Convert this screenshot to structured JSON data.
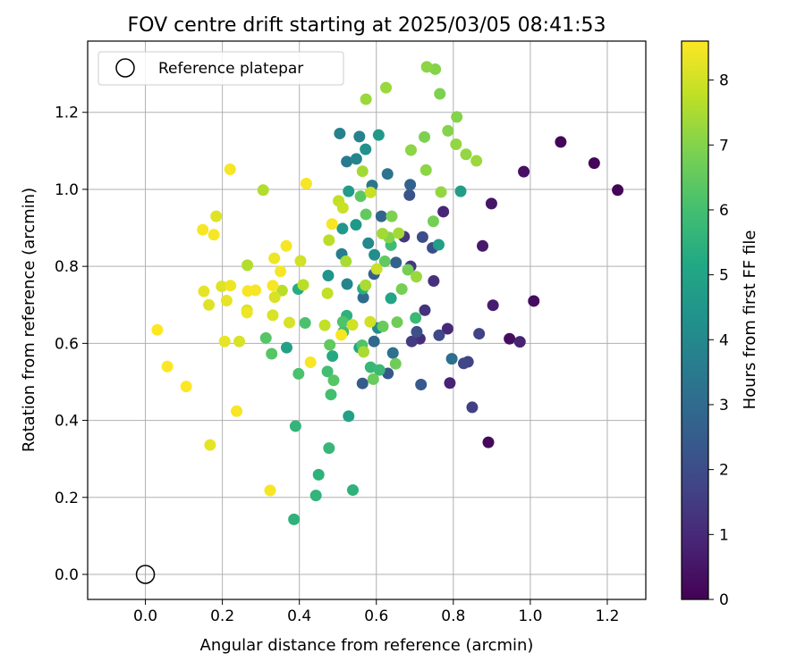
{
  "chart_data": {
    "type": "scatter",
    "title": "FOV centre drift starting at 2025/03/05 08:41:53",
    "xlabel": "Angular distance from reference (arcmin)",
    "ylabel": "Rotation from reference (arcmin)",
    "xlim": [
      -0.15,
      1.3
    ],
    "ylim": [
      -0.065,
      1.385
    ],
    "xticks": [
      "0.0",
      "0.2",
      "0.4",
      "0.6",
      "0.8",
      "1.0",
      "1.2"
    ],
    "xtick_values": [
      0,
      0.2,
      0.4,
      0.6,
      0.8,
      1.0,
      1.2
    ],
    "yticks": [
      "0.0",
      "0.2",
      "0.4",
      "0.6",
      "0.8",
      "1.0",
      "1.2"
    ],
    "ytick_values": [
      0,
      0.2,
      0.4,
      0.6,
      0.8,
      1.0,
      1.2
    ],
    "grid": true,
    "colormap": "viridis",
    "colorbar": {
      "label": "Hours from first FF file",
      "range": [
        0,
        8.6
      ],
      "ticks": [
        "0",
        "1",
        "2",
        "3",
        "4",
        "5",
        "6",
        "7",
        "8"
      ],
      "tick_values": [
        0,
        1,
        2,
        3,
        4,
        5,
        6,
        7,
        8
      ]
    },
    "legend": {
      "position": "top-left",
      "entries": [
        "Reference platepar"
      ]
    },
    "reference_point": {
      "name": "Reference platepar",
      "x": 0,
      "y": 0
    },
    "series": [
      {
        "points": [
          [
            1.227,
            0.998,
            0.1
          ],
          [
            1.166,
            1.068,
            0.1
          ],
          [
            1.079,
            1.123,
            0.1
          ],
          [
            0.891,
            0.343,
            0.2
          ],
          [
            1.009,
            0.71,
            0.3
          ],
          [
            0.946,
            0.612,
            0.3
          ],
          [
            0.983,
            1.046,
            0.4
          ],
          [
            0.899,
            0.963,
            0.5
          ],
          [
            0.876,
            0.853,
            0.6
          ],
          [
            0.903,
            0.699,
            0.7
          ],
          [
            0.973,
            0.604,
            0.8
          ],
          [
            0.791,
            0.497,
            0.8
          ],
          [
            0.774,
            0.942,
            0.9
          ],
          [
            0.785,
            0.638,
            1.0
          ],
          [
            0.713,
            0.612,
            1.1
          ],
          [
            0.749,
            0.762,
            1.2
          ],
          [
            0.726,
            0.686,
            1.3
          ],
          [
            0.689,
            0.8,
            1.4
          ],
          [
            0.672,
            0.877,
            1.4
          ],
          [
            0.692,
            0.605,
            1.5
          ],
          [
            0.849,
            0.434,
            1.6
          ],
          [
            0.838,
            0.552,
            1.7
          ],
          [
            0.867,
            0.625,
            1.7
          ],
          [
            0.827,
            0.548,
            1.8
          ],
          [
            0.763,
            0.621,
            1.9
          ],
          [
            0.746,
            0.848,
            2.0
          ],
          [
            0.72,
            0.876,
            2.0
          ],
          [
            0.705,
            0.63,
            2.1
          ],
          [
            0.686,
            0.985,
            2.2
          ],
          [
            0.63,
            0.522,
            2.3
          ],
          [
            0.716,
            0.493,
            2.4
          ],
          [
            0.564,
            0.496,
            2.5
          ],
          [
            0.594,
            0.78,
            2.6
          ],
          [
            0.651,
            0.81,
            2.7
          ],
          [
            0.688,
            1.012,
            2.7
          ],
          [
            0.613,
            0.93,
            2.8
          ],
          [
            0.594,
            0.605,
            2.9
          ],
          [
            0.566,
            0.719,
            3.0
          ],
          [
            0.796,
            0.56,
            3.1
          ],
          [
            0.643,
            0.575,
            3.2
          ],
          [
            0.629,
            1.04,
            3.3
          ],
          [
            0.589,
            1.01,
            3.4
          ],
          [
            0.523,
            1.072,
            3.5
          ],
          [
            0.51,
            0.832,
            3.6
          ],
          [
            0.505,
            1.145,
            3.7
          ],
          [
            0.556,
            1.137,
            3.8
          ],
          [
            0.524,
            0.754,
            3.9
          ],
          [
            0.548,
            1.079,
            3.9
          ],
          [
            0.579,
            0.86,
            4.0
          ],
          [
            0.604,
            0.64,
            4.1
          ],
          [
            0.595,
            0.83,
            4.2
          ],
          [
            0.572,
            1.104,
            4.3
          ],
          [
            0.475,
            0.776,
            4.4
          ],
          [
            0.512,
            0.898,
            4.5
          ],
          [
            0.547,
            0.908,
            4.6
          ],
          [
            0.606,
            1.141,
            4.6
          ],
          [
            0.528,
            0.995,
            4.7
          ],
          [
            0.762,
            0.856,
            4.8
          ],
          [
            0.819,
            0.995,
            4.8
          ],
          [
            0.528,
            0.411,
            4.9
          ],
          [
            0.367,
            0.589,
            4.9
          ],
          [
            0.638,
            0.717,
            5.0
          ],
          [
            0.556,
            0.589,
            5.1
          ],
          [
            0.486,
            0.567,
            5.2
          ],
          [
            0.397,
            0.741,
            5.3
          ],
          [
            0.565,
            0.742,
            5.4
          ],
          [
            0.523,
            0.672,
            5.5
          ],
          [
            0.45,
            0.259,
            5.5
          ],
          [
            0.539,
            0.219,
            5.5
          ],
          [
            0.386,
            0.143,
            5.5
          ],
          [
            0.443,
            0.205,
            5.6
          ],
          [
            0.39,
            0.385,
            5.6
          ],
          [
            0.477,
            0.328,
            5.7
          ],
          [
            0.585,
            0.538,
            5.7
          ],
          [
            0.608,
            0.531,
            5.8
          ],
          [
            0.702,
            0.666,
            5.8
          ],
          [
            0.638,
            0.855,
            5.9
          ],
          [
            0.514,
            0.63,
            5.9
          ],
          [
            0.473,
            0.527,
            6.0
          ],
          [
            0.482,
            0.467,
            6.0
          ],
          [
            0.398,
            0.521,
            6.1
          ],
          [
            0.415,
            0.653,
            6.1
          ],
          [
            0.563,
            0.595,
            6.2
          ],
          [
            0.513,
            0.656,
            6.2
          ],
          [
            0.489,
            0.504,
            6.3
          ],
          [
            0.328,
            0.573,
            6.3
          ],
          [
            0.313,
            0.614,
            6.3
          ],
          [
            0.559,
            0.982,
            6.4
          ],
          [
            0.573,
            0.935,
            6.5
          ],
          [
            0.622,
            0.813,
            6.5
          ],
          [
            0.479,
            0.596,
            6.5
          ],
          [
            0.592,
            0.507,
            6.6
          ],
          [
            0.617,
            0.644,
            6.6
          ],
          [
            0.65,
            0.547,
            6.7
          ],
          [
            0.654,
            0.655,
            6.7
          ],
          [
            0.666,
            0.741,
            6.8
          ],
          [
            0.682,
            0.791,
            6.8
          ],
          [
            0.748,
            0.917,
            6.8
          ],
          [
            0.765,
            1.248,
            6.9
          ],
          [
            0.725,
            1.136,
            6.9
          ],
          [
            0.64,
            0.93,
            6.9
          ],
          [
            0.633,
            0.875,
            7.0
          ],
          [
            0.786,
            1.152,
            7.0
          ],
          [
            0.809,
            1.188,
            7.0
          ],
          [
            0.753,
            1.312,
            7.0
          ],
          [
            0.731,
            1.318,
            7.1
          ],
          [
            0.69,
            1.102,
            7.1
          ],
          [
            0.729,
            1.05,
            7.1
          ],
          [
            0.768,
            0.993,
            7.2
          ],
          [
            0.807,
            1.117,
            7.2
          ],
          [
            0.833,
            1.091,
            7.2
          ],
          [
            0.86,
            1.074,
            7.3
          ],
          [
            0.573,
            1.234,
            7.3
          ],
          [
            0.625,
            1.264,
            7.3
          ],
          [
            0.704,
            0.773,
            7.3
          ],
          [
            0.658,
            0.886,
            7.4
          ],
          [
            0.616,
            0.885,
            7.4
          ],
          [
            0.564,
            1.047,
            7.4
          ],
          [
            0.567,
            0.578,
            7.5
          ],
          [
            0.521,
            0.813,
            7.5
          ],
          [
            0.572,
            0.751,
            7.5
          ],
          [
            0.306,
            0.998,
            7.6
          ],
          [
            0.265,
            0.803,
            7.6
          ],
          [
            0.355,
            0.737,
            7.7
          ],
          [
            0.41,
            0.752,
            7.7
          ],
          [
            0.477,
            0.868,
            7.7
          ],
          [
            0.473,
            0.73,
            7.8
          ],
          [
            0.466,
            0.647,
            7.8
          ],
          [
            0.502,
            0.97,
            7.8
          ],
          [
            0.513,
            0.952,
            7.9
          ],
          [
            0.585,
            0.992,
            7.9
          ],
          [
            0.601,
            0.793,
            7.9
          ],
          [
            0.584,
            0.656,
            8.0
          ],
          [
            0.538,
            0.648,
            8.0
          ],
          [
            0.403,
            0.814,
            8.0
          ],
          [
            0.336,
            0.72,
            8.1
          ],
          [
            0.331,
            0.673,
            8.1
          ],
          [
            0.374,
            0.654,
            8.1
          ],
          [
            0.244,
            0.605,
            8.1
          ],
          [
            0.264,
            0.686,
            8.1
          ],
          [
            0.198,
            0.748,
            8.2
          ],
          [
            0.184,
            0.93,
            8.2
          ],
          [
            0.165,
            0.7,
            8.2
          ],
          [
            0.152,
            0.735,
            8.3
          ],
          [
            0.168,
            0.336,
            8.3
          ],
          [
            0.206,
            0.605,
            8.3
          ],
          [
            0.211,
            0.711,
            8.3
          ],
          [
            0.221,
            0.75,
            8.4
          ],
          [
            0.264,
            0.68,
            8.4
          ],
          [
            0.335,
            0.821,
            8.4
          ],
          [
            0.351,
            0.787,
            8.5
          ],
          [
            0.331,
            0.75,
            8.5
          ],
          [
            0.149,
            0.895,
            8.5
          ],
          [
            0.178,
            0.882,
            8.5
          ],
          [
            0.22,
            1.052,
            8.5
          ],
          [
            0.237,
            0.424,
            8.5
          ],
          [
            0.266,
            0.736,
            8.5
          ],
          [
            0.286,
            0.738,
            8.5
          ],
          [
            0.324,
            0.218,
            8.5
          ],
          [
            0.366,
            0.853,
            8.5
          ],
          [
            0.418,
            1.015,
            8.5
          ],
          [
            0.429,
            0.551,
            8.5
          ],
          [
            0.485,
            0.91,
            8.5
          ],
          [
            0.509,
            0.622,
            8.5
          ],
          [
            0.031,
            0.635,
            8.6
          ],
          [
            0.057,
            0.54,
            8.6
          ],
          [
            0.106,
            0.488,
            8.6
          ]
        ]
      }
    ]
  }
}
